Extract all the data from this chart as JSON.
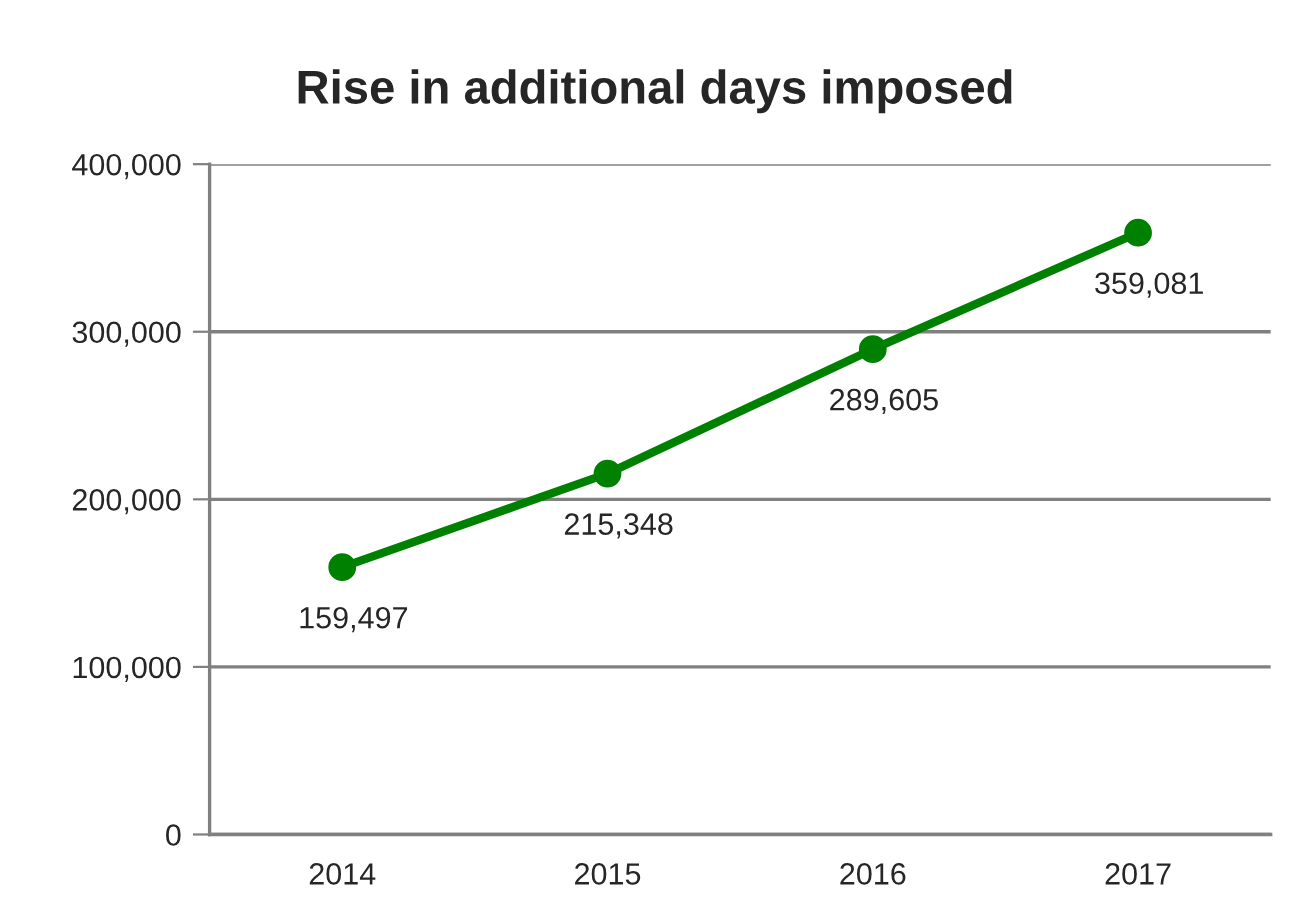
{
  "chart_data": {
    "type": "line",
    "title": "Rise in additional days imposed",
    "categories": [
      "2014",
      "2015",
      "2016",
      "2017"
    ],
    "series": [
      {
        "color": "#008000",
        "values": [
          159497,
          215348,
          289605,
          359081
        ],
        "value_labels": [
          "159,497",
          "215,348",
          "289,605",
          "359,081"
        ]
      }
    ],
    "ylim": [
      0,
      400000
    ],
    "yticks": [
      {
        "value": 0,
        "label": "0"
      },
      {
        "value": 100000,
        "label": "100,000"
      },
      {
        "value": 200000,
        "label": "200,000"
      },
      {
        "value": 300000,
        "label": "300,000"
      },
      {
        "value": 400000,
        "label": "400,000"
      }
    ],
    "grid": "y",
    "marker": "circle",
    "line_style": "solid",
    "legend": false
  }
}
